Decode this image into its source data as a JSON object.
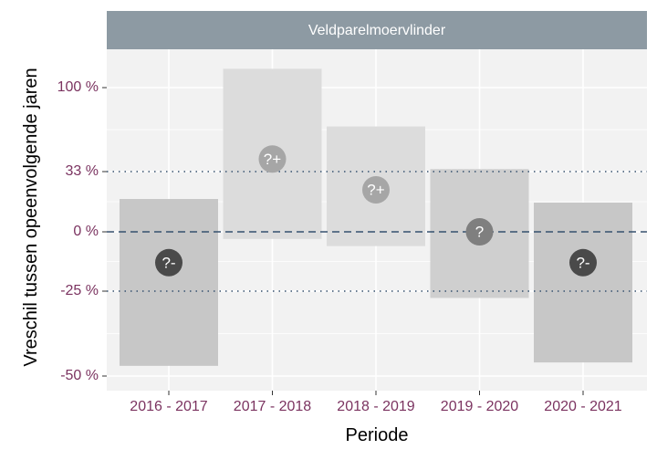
{
  "chart_data": {
    "type": "interval",
    "facet_title": "Veldparelmoervlinder",
    "xlabel": "Periode",
    "ylabel": "Vreschil tussen opeenvolgende jaren",
    "categories": [
      "2016 - 2017",
      "2017 - 2018",
      "2018 - 2019",
      "2019 - 2020",
      "2020 - 2021"
    ],
    "y_ticks": [
      {
        "label": "-50 %",
        "value": -0.5
      },
      {
        "label": "-25 %",
        "value": -0.25
      },
      {
        "label": "0 %",
        "value": 0
      },
      {
        "label": "33 %",
        "value": 0.33
      },
      {
        "label": "100 %",
        "value": 1.0
      }
    ],
    "reference_lines": [
      {
        "value": 0,
        "style": "dashed"
      },
      {
        "value": -0.25,
        "style": "dotted"
      },
      {
        "value": 0.33,
        "style": "dotted"
      }
    ],
    "intervals": [
      {
        "lower": -0.47,
        "upper": 0.18,
        "estimate": -0.13,
        "symbol": "?-",
        "band_color": "#c4c4c4",
        "marker_color": "#4a4a4a"
      },
      {
        "lower": -0.03,
        "upper": 1.15,
        "estimate": 0.43,
        "symbol": "?+",
        "band_color": "#dadada",
        "marker_color": "#a6a6a6"
      },
      {
        "lower": -0.06,
        "upper": 0.69,
        "estimate": 0.23,
        "symbol": "?+",
        "band_color": "#dadada",
        "marker_color": "#a6a6a6"
      },
      {
        "lower": -0.27,
        "upper": 0.35,
        "estimate": 0.0,
        "symbol": "?",
        "band_color": "#cccccc",
        "marker_color": "#7f7f7f"
      },
      {
        "lower": -0.46,
        "upper": 0.16,
        "estimate": -0.13,
        "symbol": "?-",
        "band_color": "#c4c4c4",
        "marker_color": "#4a4a4a"
      }
    ],
    "colors": {
      "panel_bg": "#f2f2f2",
      "strip_bg": "#8d9aa3",
      "grid": "#ffffff",
      "reference": "#35506e",
      "tick_label": "#7b3360"
    },
    "grid": true
  }
}
